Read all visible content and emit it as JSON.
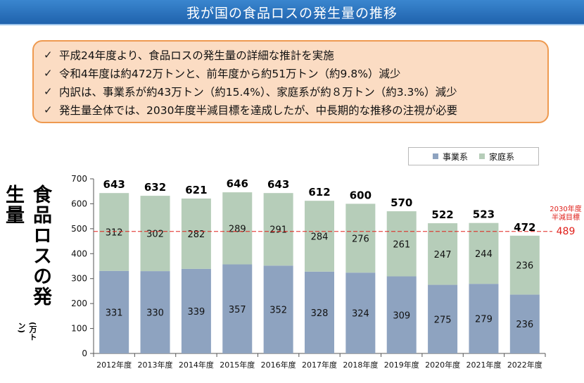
{
  "title": "我が国の食品ロスの発生量の推移",
  "summary": [
    "平成24年度より、食品ロスの発生量の詳細な推計を実施",
    "令和4年度は約472万トンと、前年度から約51万トン（約9.8%）減少",
    "内訳は、事業系が約43万トン（約15.4%）、家庭系が約８万トン（約3.3%）減少",
    "発生量全体では、2030年度半減目標を達成したが、中長期的な推移の注視が必要"
  ],
  "check_glyph": "✓",
  "y_axis_label": "食品ロスの発生量",
  "y_axis_unit": "(万トン)",
  "target": {
    "label_line1": "2030年度",
    "label_line2": "半減目標",
    "value": "489"
  },
  "colors": {
    "business": "#8ea3c0",
    "household": "#b6cdb9",
    "target_line": "#e0201b",
    "title_bar": "#2a73c0"
  },
  "chart_data": {
    "type": "bar",
    "stacked": true,
    "categories": [
      "2012年度",
      "2013年度",
      "2014年度",
      "2015年度",
      "2016年度",
      "2017年度",
      "2018年度",
      "2019年度",
      "2020年度",
      "2021年度",
      "2022年度"
    ],
    "series": [
      {
        "name": "事業系",
        "values": [
          331,
          330,
          339,
          357,
          352,
          328,
          324,
          309,
          275,
          279,
          236
        ]
      },
      {
        "name": "家庭系",
        "values": [
          312,
          302,
          282,
          289,
          291,
          284,
          276,
          261,
          247,
          244,
          236
        ]
      }
    ],
    "totals": [
      643,
      632,
      621,
      646,
      643,
      612,
      600,
      570,
      522,
      523,
      472
    ],
    "ylim": [
      0,
      700
    ],
    "yticks": [
      0,
      100,
      200,
      300,
      400,
      500,
      600,
      700
    ],
    "target_value": 489,
    "legend_position": "top-right"
  }
}
